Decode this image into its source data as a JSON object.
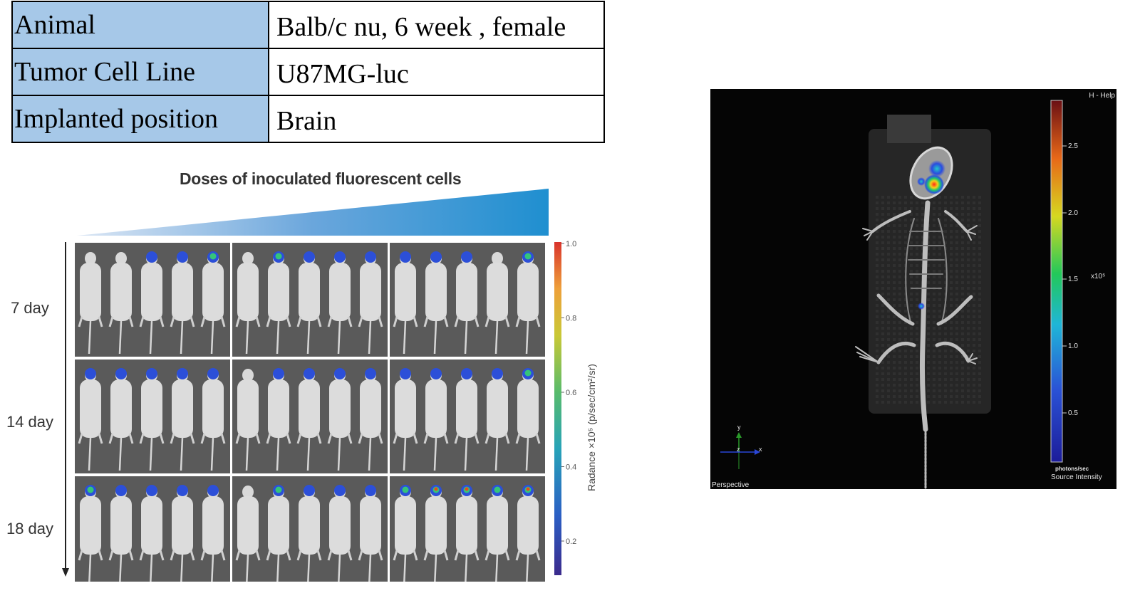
{
  "info_table": {
    "rows": [
      {
        "key": "Animal",
        "value": "Balb/c nu, 6 week , female"
      },
      {
        "key": "Tumor Cell Line",
        "value": "U87MG-luc"
      },
      {
        "key": "Implanted position",
        "value": "Brain"
      }
    ]
  },
  "figure": {
    "title": "Doses of inoculated fluorescent cells",
    "days": [
      "7 day",
      "14 day",
      "18 day"
    ],
    "colorbar": {
      "ticks": [
        "1.0",
        "0.8",
        "0.6",
        "0.4",
        "0.2"
      ],
      "label": "Radance ×10⁵ (p/sec/cm²/sr)"
    },
    "signal_levels": [
      [
        [
          0,
          0,
          1,
          1,
          2
        ],
        [
          0,
          2,
          1,
          1,
          1
        ],
        [
          1,
          1,
          1,
          0,
          2
        ]
      ],
      [
        [
          1,
          1,
          1,
          1,
          1
        ],
        [
          0,
          1,
          1,
          1,
          1
        ],
        [
          1,
          1,
          1,
          1,
          2
        ]
      ],
      [
        [
          2,
          1,
          1,
          1,
          1
        ],
        [
          0,
          2,
          1,
          1,
          1
        ],
        [
          2,
          3,
          3,
          2,
          3
        ]
      ]
    ]
  },
  "ct_view": {
    "help_text": "H - Help",
    "scale_ticks": [
      "2.5",
      "2.0",
      "1.5",
      "1.0",
      "0.5"
    ],
    "scale_exponent": "x10⁵",
    "units_top": "photons/sec",
    "units_bottom": "Source Intensity",
    "axes": {
      "y": "y",
      "x": "x",
      "z": "z"
    },
    "view_label": "Perspective"
  },
  "colors": {
    "table_key_bg": "#a6c8e8",
    "panel_bg": "#5a5a5a",
    "accent_blue": "#1f90d0"
  }
}
